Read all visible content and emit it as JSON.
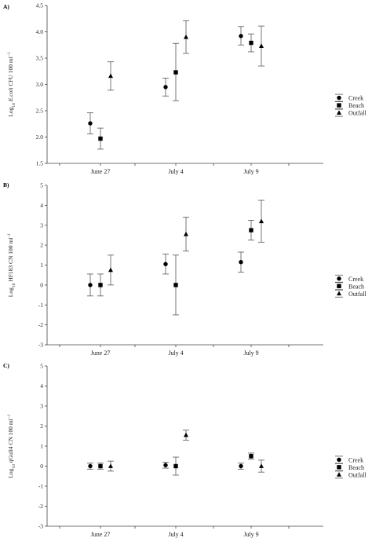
{
  "chart_data": [
    {
      "type": "scatter",
      "panel_label": "A)",
      "ylabel_parts": {
        "pre": "Log",
        "sub": "10",
        "mid1": " ",
        "ital": "E.coli",
        "mid2": " CFU 100 ml",
        "sup": "−1"
      },
      "categories": [
        "June 27",
        "July 4",
        "July 9"
      ],
      "ylim": [
        1.5,
        4.5
      ],
      "yticks": [
        "1.5",
        "2.0",
        "2.5",
        "3.0",
        "3.5",
        "4.0",
        "4.5"
      ],
      "ytick_values": [
        1.5,
        2.0,
        2.5,
        3.0,
        3.5,
        4.0,
        4.5
      ],
      "series": [
        {
          "name": "Creek",
          "marker": "circle",
          "values": [
            2.26,
            2.95,
            3.92
          ],
          "err_low": [
            2.06,
            2.78,
            3.75
          ],
          "err_high": [
            2.46,
            3.12,
            4.1
          ]
        },
        {
          "name": "Beach",
          "marker": "square",
          "values": [
            1.97,
            3.23,
            3.79
          ],
          "err_low": [
            1.77,
            2.69,
            3.62
          ],
          "err_high": [
            2.17,
            3.78,
            3.96
          ]
        },
        {
          "name": "Outfall",
          "marker": "triangle",
          "values": [
            3.16,
            3.9,
            3.73
          ],
          "err_low": [
            2.89,
            3.59,
            3.35
          ],
          "err_high": [
            3.43,
            4.21,
            4.11
          ]
        }
      ],
      "legend": [
        "Creek",
        "Beach",
        "Outfall"
      ],
      "legend_position": "right"
    },
    {
      "type": "scatter",
      "panel_label": "B)",
      "ylabel_parts": {
        "pre": "Log",
        "sub": "10",
        "mid1": " ",
        "ital": "",
        "mid2": "HF183 CN 100 ml",
        "sup": "−1"
      },
      "categories": [
        "June 27",
        "July 4",
        "July 9"
      ],
      "ylim": [
        -3,
        5
      ],
      "yticks": [
        "-3",
        "-2",
        "-1",
        "0",
        "1",
        "2",
        "3",
        "4",
        "5"
      ],
      "ytick_values": [
        -3,
        -2,
        -1,
        0,
        1,
        2,
        3,
        4,
        5
      ],
      "series": [
        {
          "name": "Creek",
          "marker": "circle",
          "values": [
            0.0,
            1.05,
            1.15
          ],
          "err_low": [
            -0.55,
            0.55,
            0.65
          ],
          "err_high": [
            0.55,
            1.55,
            1.65
          ]
        },
        {
          "name": "Beach",
          "marker": "square",
          "values": [
            0.0,
            0.0,
            2.75
          ],
          "err_low": [
            -0.55,
            -1.5,
            2.25
          ],
          "err_high": [
            0.55,
            1.5,
            3.25
          ]
        },
        {
          "name": "Outfall",
          "marker": "triangle",
          "values": [
            0.75,
            2.55,
            3.2
          ],
          "err_low": [
            0.0,
            1.7,
            2.15
          ],
          "err_high": [
            1.5,
            3.4,
            4.25
          ]
        }
      ],
      "legend": [
        "Creek",
        "Beach",
        "Outfall"
      ],
      "legend_position": "right"
    },
    {
      "type": "scatter",
      "panel_label": "C)",
      "ylabel_parts": {
        "pre": "Log",
        "sub": "10",
        "mid1": " ",
        "ital": "",
        "mid2": "qGull4 CN 100 ml",
        "sup": "−1"
      },
      "categories": [
        "June 27",
        "July 4",
        "July 9"
      ],
      "ylim": [
        -3,
        5
      ],
      "yticks": [
        "-3",
        "-2",
        "-1",
        "0",
        "1",
        "2",
        "3",
        "4",
        "5"
      ],
      "ytick_values": [
        -3,
        -2,
        -1,
        0,
        1,
        2,
        3,
        4,
        5
      ],
      "series": [
        {
          "name": "Creek",
          "marker": "circle",
          "values": [
            0.0,
            0.05,
            0.0
          ],
          "err_low": [
            -0.15,
            -0.1,
            -0.15
          ],
          "err_high": [
            0.15,
            0.2,
            0.15
          ]
        },
        {
          "name": "Beach",
          "marker": "square",
          "values": [
            0.0,
            0.0,
            0.5
          ],
          "err_low": [
            -0.15,
            -0.45,
            0.35
          ],
          "err_high": [
            0.15,
            0.45,
            0.65
          ]
        },
        {
          "name": "Outfall",
          "marker": "triangle",
          "values": [
            0.0,
            1.55,
            0.0
          ],
          "err_low": [
            -0.25,
            1.3,
            -0.3
          ],
          "err_high": [
            0.25,
            1.8,
            0.3
          ]
        }
      ],
      "legend": [
        "Creek",
        "Beach",
        "Outfall"
      ],
      "legend_position": "right"
    }
  ]
}
